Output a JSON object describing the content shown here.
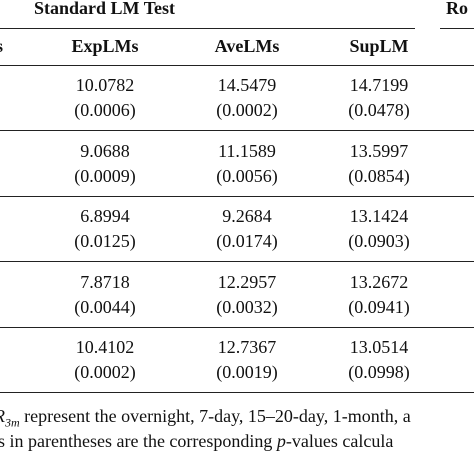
{
  "header": {
    "group": "Standard LM Test",
    "group2": "Ro"
  },
  "columns": [
    "s",
    "ExpLMs",
    "AveLMs",
    "SupLM"
  ],
  "rows": [
    [
      [
        "10.0782",
        "(0.0006)"
      ],
      [
        "14.5479",
        "(0.0002)"
      ],
      [
        "14.7199",
        "(0.0478)"
      ]
    ],
    [
      [
        "9.0688",
        "(0.0009)"
      ],
      [
        "11.1589",
        "(0.0056)"
      ],
      [
        "13.5997",
        "(0.0854)"
      ]
    ],
    [
      [
        "6.8994",
        "(0.0125)"
      ],
      [
        "9.2684",
        "(0.0174)"
      ],
      [
        "13.1424",
        "(0.0903)"
      ]
    ],
    [
      [
        "7.8718",
        "(0.0044)"
      ],
      [
        "12.2957",
        "(0.0032)"
      ],
      [
        "13.2672",
        "(0.0941)"
      ]
    ],
    [
      [
        "10.4102",
        "(0.0002)"
      ],
      [
        "12.7367",
        "(0.0019)"
      ],
      [
        "13.0514",
        "(0.0998)"
      ]
    ]
  ],
  "footnote": {
    "line1": {
      "var": "R",
      "sub": "3m",
      "text": " represent the overnight, 7-day, 15–20-day, 1-month, a"
    },
    "line2": {
      "pre": "s in parentheses are the corresponding ",
      "italic": "p",
      "post": "-values calcula"
    }
  }
}
